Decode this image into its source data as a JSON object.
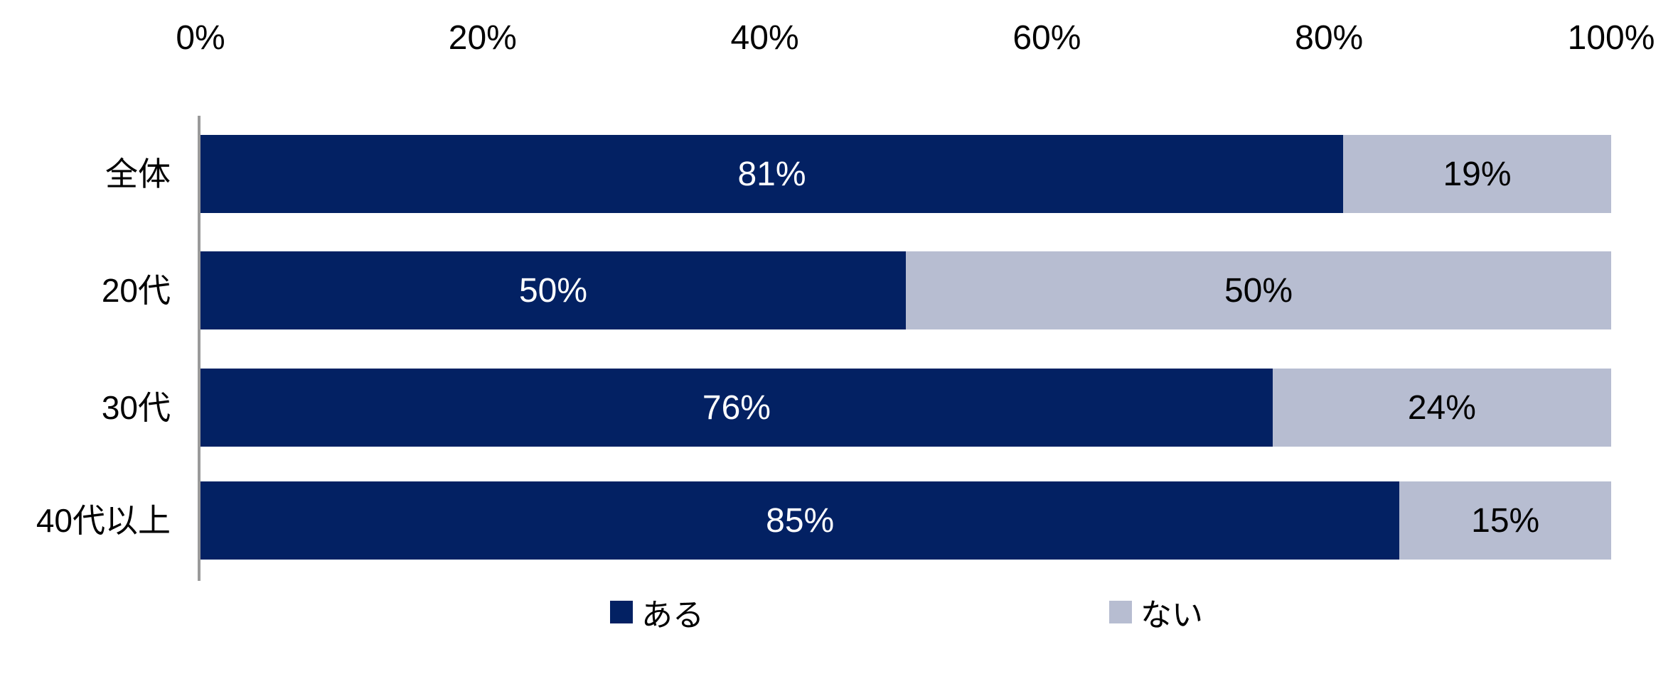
{
  "chart_data": {
    "type": "bar",
    "orientation": "horizontal-stacked",
    "title": "",
    "categories": [
      "全体",
      "20代",
      "30代",
      "40代以上"
    ],
    "series": [
      {
        "name": "ある",
        "color": "#032163",
        "label_color": "#ffffff",
        "values": [
          81,
          50,
          76,
          85
        ],
        "labels": [
          "81%",
          "50%",
          "76%",
          "85%"
        ]
      },
      {
        "name": "ない",
        "color": "#b7bdd1",
        "label_color": "#000000",
        "values": [
          19,
          50,
          24,
          15
        ],
        "labels": [
          "19%",
          "50%",
          "24%",
          "15%"
        ]
      }
    ],
    "x_ticks": [
      "0%",
      "20%",
      "40%",
      "60%",
      "80%",
      "100%"
    ],
    "xlim": [
      0,
      100
    ],
    "grid": "off",
    "legend_position": "bottom",
    "axis_line_color": "#9a9a9a",
    "background_color": "#ffffff"
  }
}
